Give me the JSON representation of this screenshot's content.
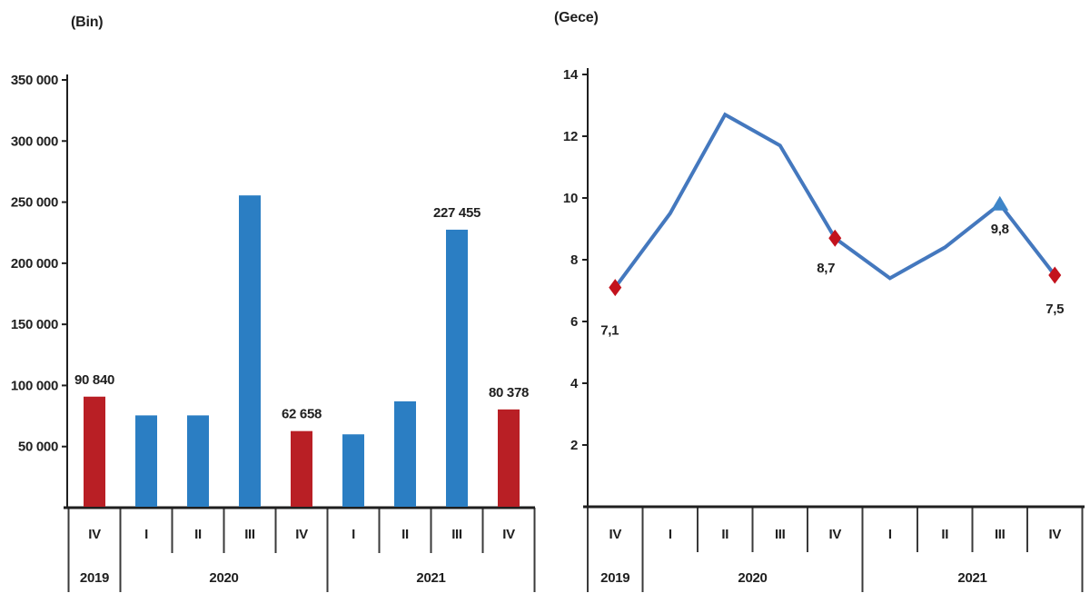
{
  "page": {
    "background": "#ffffff"
  },
  "chart_data": [
    {
      "type": "bar",
      "title": "(Bin)",
      "categories": [
        "IV",
        "I",
        "II",
        "III",
        "IV",
        "I",
        "II",
        "III",
        "IV"
      ],
      "year_groups": [
        {
          "label": "2019",
          "span": 1
        },
        {
          "label": "2020",
          "span": 4
        },
        {
          "label": "2021",
          "span": 4
        }
      ],
      "values": [
        90840,
        75500,
        75500,
        255500,
        62658,
        60000,
        87000,
        227455,
        80378
      ],
      "bar_colors": [
        "red",
        "blue",
        "blue",
        "blue",
        "red",
        "blue",
        "blue",
        "blue",
        "red"
      ],
      "data_labels": {
        "0": "90 840",
        "4": "62 658",
        "7": "227 455",
        "8": "80 378"
      },
      "ylim": [
        0,
        350000
      ],
      "ytick_step": 50000,
      "ytick_labels": [
        "50 000",
        "100 000",
        "150 000",
        "200 000",
        "250 000",
        "300 000",
        "350 000"
      ],
      "grid": false,
      "legend": "none",
      "colors": {
        "blue": "#2B7EC3",
        "red": "#B91F25",
        "axis": "#1f1f1f"
      }
    },
    {
      "type": "line",
      "title": "(Gece)",
      "categories": [
        "IV",
        "I",
        "II",
        "III",
        "IV",
        "I",
        "II",
        "III",
        "IV"
      ],
      "year_groups": [
        {
          "label": "2019",
          "span": 1
        },
        {
          "label": "2020",
          "span": 4
        },
        {
          "label": "2021",
          "span": 4
        }
      ],
      "values": [
        7.1,
        9.5,
        12.7,
        11.7,
        8.7,
        7.4,
        8.4,
        9.8,
        7.5
      ],
      "markers": {
        "0": "red-diamond",
        "4": "red-diamond",
        "7": "blue-triangle",
        "8": "red-diamond"
      },
      "data_labels": {
        "0": "7,1",
        "4": "8,7",
        "7": "9,8",
        "8": "7,5"
      },
      "label_offsets": {
        "0": [
          -6,
          52
        ],
        "4": [
          -10,
          38
        ],
        "7": [
          0,
          32
        ],
        "8": [
          0,
          42
        ]
      },
      "ylim": [
        0,
        14
      ],
      "ytick_step": 2,
      "ytick_labels": [
        "2",
        "4",
        "6",
        "8",
        "10",
        "12",
        "14"
      ],
      "grid": false,
      "legend": "none",
      "colors": {
        "line": "#4478BE",
        "marker_red": "#C3121D",
        "marker_blue": "#3E86C9",
        "axis": "#1f1f1f"
      }
    }
  ]
}
